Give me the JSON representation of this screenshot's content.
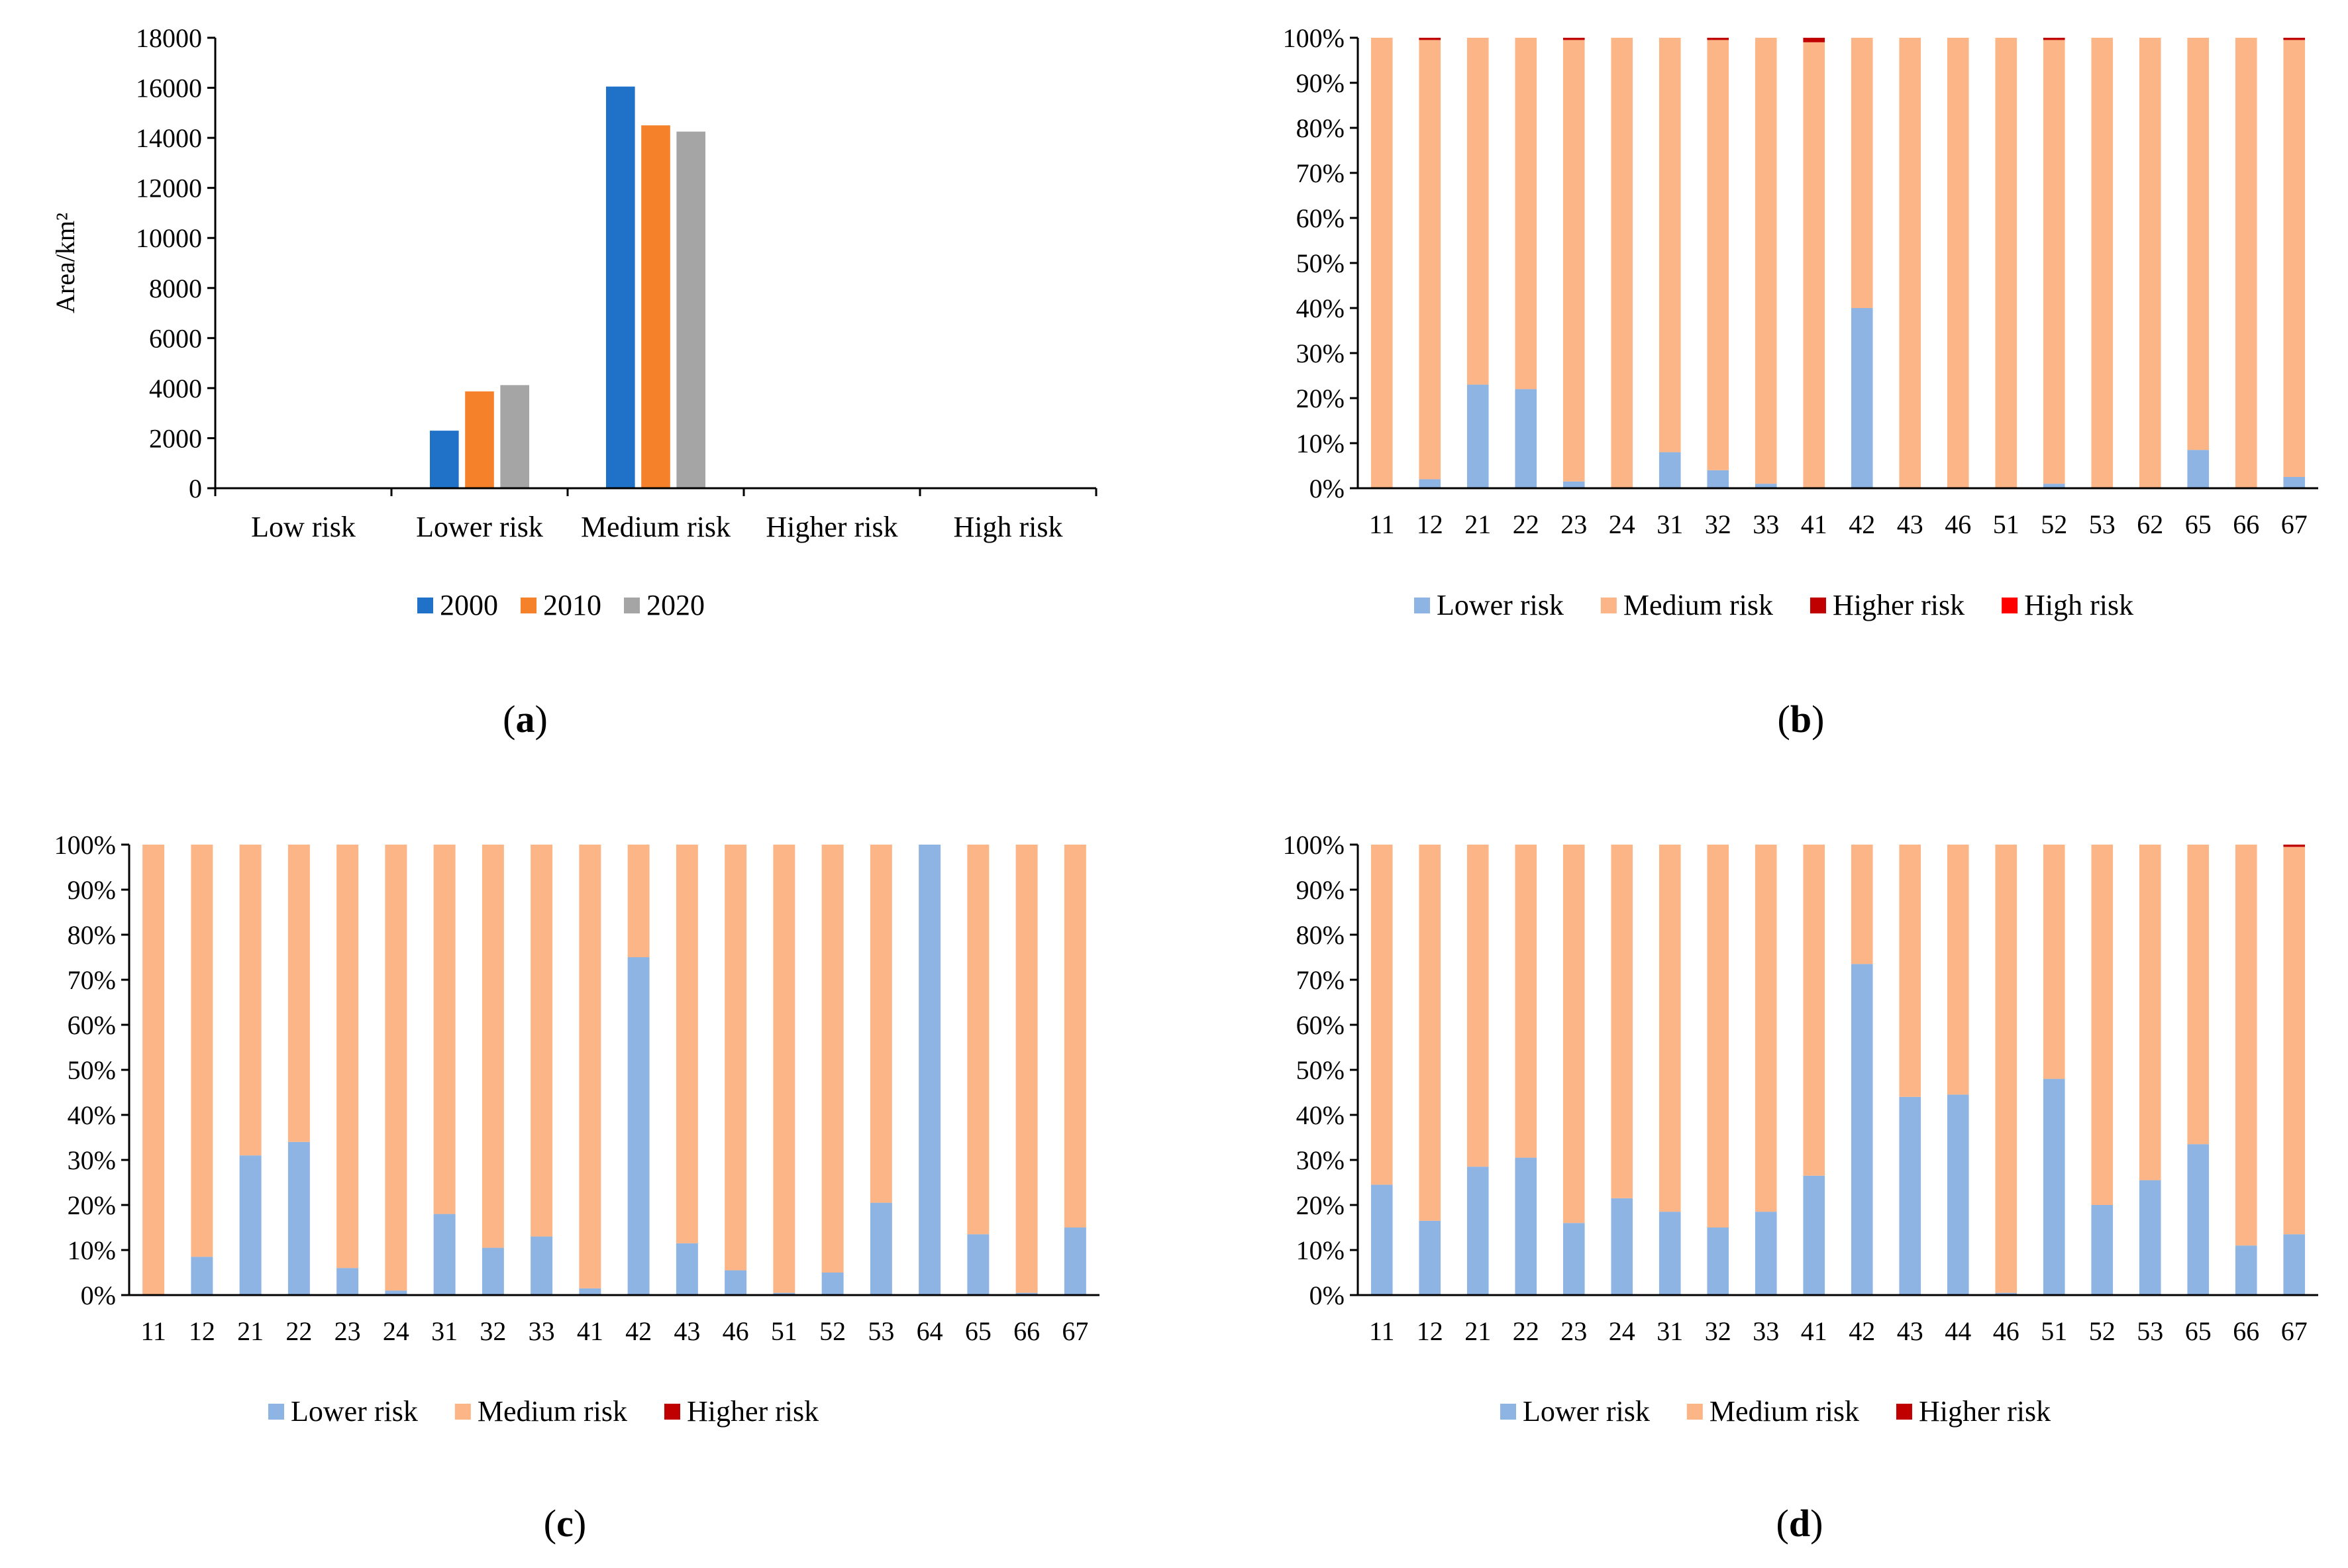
{
  "panel_labels": {
    "a": "a",
    "b": "b",
    "c": "c",
    "d": "d"
  },
  "chart_data": [
    {
      "id": "a",
      "type": "bar",
      "categories": [
        "Low risk",
        "Lower risk",
        "Medium risk",
        "Higher risk",
        "High risk"
      ],
      "series": [
        {
          "name": "2000",
          "color": "#1f72c8",
          "values": [
            0,
            2300,
            16050,
            0,
            0
          ]
        },
        {
          "name": "2010",
          "color": "#f5822a",
          "values": [
            0,
            3870,
            14500,
            0,
            0
          ]
        },
        {
          "name": "2020",
          "color": "#a5a5a5",
          "values": [
            0,
            4120,
            14250,
            0,
            0
          ]
        }
      ],
      "ylabel": "Area/km²",
      "ylim": [
        0,
        18000
      ],
      "yticks": [
        "0",
        "2000",
        "4000",
        "6000",
        "8000",
        "10000",
        "12000",
        "14000",
        "16000",
        "18000"
      ],
      "legend_position": "bottom"
    },
    {
      "id": "b",
      "type": "bar",
      "stacked": "percent",
      "categories": [
        "11",
        "12",
        "21",
        "22",
        "23",
        "24",
        "31",
        "32",
        "33",
        "41",
        "42",
        "43",
        "46",
        "51",
        "52",
        "53",
        "62",
        "65",
        "66",
        "67"
      ],
      "series": [
        {
          "name": "Lower risk",
          "color": "#8eb4e3",
          "values": [
            0,
            2,
            23,
            22,
            1.5,
            0,
            8,
            4,
            1,
            0,
            40,
            0,
            0,
            0,
            1,
            0,
            0,
            8.5,
            0,
            2.5
          ]
        },
        {
          "name": "Medium risk",
          "color": "#fbb586",
          "values": [
            100,
            97.5,
            77,
            78,
            98,
            100,
            92,
            95.5,
            99,
            99,
            60,
            100,
            100,
            100,
            98.5,
            100,
            100,
            91.5,
            100,
            97
          ]
        },
        {
          "name": "Higher risk",
          "color": "#c00000",
          "values": [
            0,
            0.5,
            0,
            0,
            0.5,
            0,
            0,
            0.5,
            0,
            1,
            0,
            0,
            0,
            0,
            0.5,
            0,
            0,
            0,
            0,
            0.5
          ]
        },
        {
          "name": "High risk",
          "color": "#ff0000",
          "values": [
            0,
            0,
            0,
            0,
            0,
            0,
            0,
            0,
            0,
            0,
            0,
            0,
            0,
            0,
            0,
            0,
            0,
            0,
            0,
            0
          ]
        }
      ],
      "ylim": [
        0,
        100
      ],
      "yticks": [
        "0%",
        "10%",
        "20%",
        "30%",
        "40%",
        "50%",
        "60%",
        "70%",
        "80%",
        "90%",
        "100%"
      ],
      "legend_position": "bottom"
    },
    {
      "id": "c",
      "type": "bar",
      "stacked": "percent",
      "categories": [
        "11",
        "12",
        "21",
        "22",
        "23",
        "24",
        "31",
        "32",
        "33",
        "41",
        "42",
        "43",
        "46",
        "51",
        "52",
        "53",
        "64",
        "65",
        "66",
        "67"
      ],
      "series": [
        {
          "name": "Lower risk",
          "color": "#8eb4e3",
          "values": [
            0,
            8.5,
            31,
            34,
            6,
            1,
            18,
            10.5,
            13,
            1.5,
            75,
            11.5,
            5.5,
            0.5,
            5,
            20.5,
            100,
            13.5,
            0.5,
            15
          ]
        },
        {
          "name": "Medium risk",
          "color": "#fbb586",
          "values": [
            100,
            91.5,
            69,
            66,
            94,
            99,
            82,
            89.5,
            87,
            98.5,
            25,
            88.5,
            94.5,
            99.5,
            95,
            79.5,
            0,
            86.5,
            99.5,
            85
          ]
        },
        {
          "name": "Higher risk",
          "color": "#c00000",
          "values": [
            0,
            0,
            0,
            0,
            0,
            0,
            0,
            0,
            0,
            0,
            0,
            0,
            0,
            0,
            0,
            0,
            0,
            0,
            0,
            0
          ]
        }
      ],
      "ylim": [
        0,
        100
      ],
      "yticks": [
        "0%",
        "10%",
        "20%",
        "30%",
        "40%",
        "50%",
        "60%",
        "70%",
        "80%",
        "90%",
        "100%"
      ],
      "legend_position": "bottom"
    },
    {
      "id": "d",
      "type": "bar",
      "stacked": "percent",
      "categories": [
        "11",
        "12",
        "21",
        "22",
        "23",
        "24",
        "31",
        "32",
        "33",
        "41",
        "42",
        "43",
        "44",
        "46",
        "51",
        "52",
        "53",
        "65",
        "66",
        "67"
      ],
      "series": [
        {
          "name": "Lower risk",
          "color": "#8eb4e3",
          "values": [
            24.5,
            16.5,
            28.5,
            30.5,
            16,
            21.5,
            18.5,
            15,
            18.5,
            26.5,
            73.5,
            44,
            44.5,
            0.5,
            48,
            20,
            25.5,
            33.5,
            11,
            13.5
          ]
        },
        {
          "name": "Medium risk",
          "color": "#fbb586",
          "values": [
            75.5,
            83.5,
            71.5,
            69.5,
            84,
            78.5,
            81.5,
            85,
            81.5,
            73.5,
            26.5,
            56,
            55.5,
            99.5,
            52,
            80,
            74.5,
            66.5,
            89,
            86
          ]
        },
        {
          "name": "Higher risk",
          "color": "#c00000",
          "values": [
            0,
            0,
            0,
            0,
            0,
            0,
            0,
            0,
            0,
            0,
            0,
            0,
            0,
            0,
            0,
            0,
            0,
            0,
            0,
            0.5
          ]
        }
      ],
      "ylim": [
        0,
        100
      ],
      "yticks": [
        "0%",
        "10%",
        "20%",
        "30%",
        "40%",
        "50%",
        "60%",
        "70%",
        "80%",
        "90%",
        "100%"
      ],
      "legend_position": "bottom"
    }
  ]
}
